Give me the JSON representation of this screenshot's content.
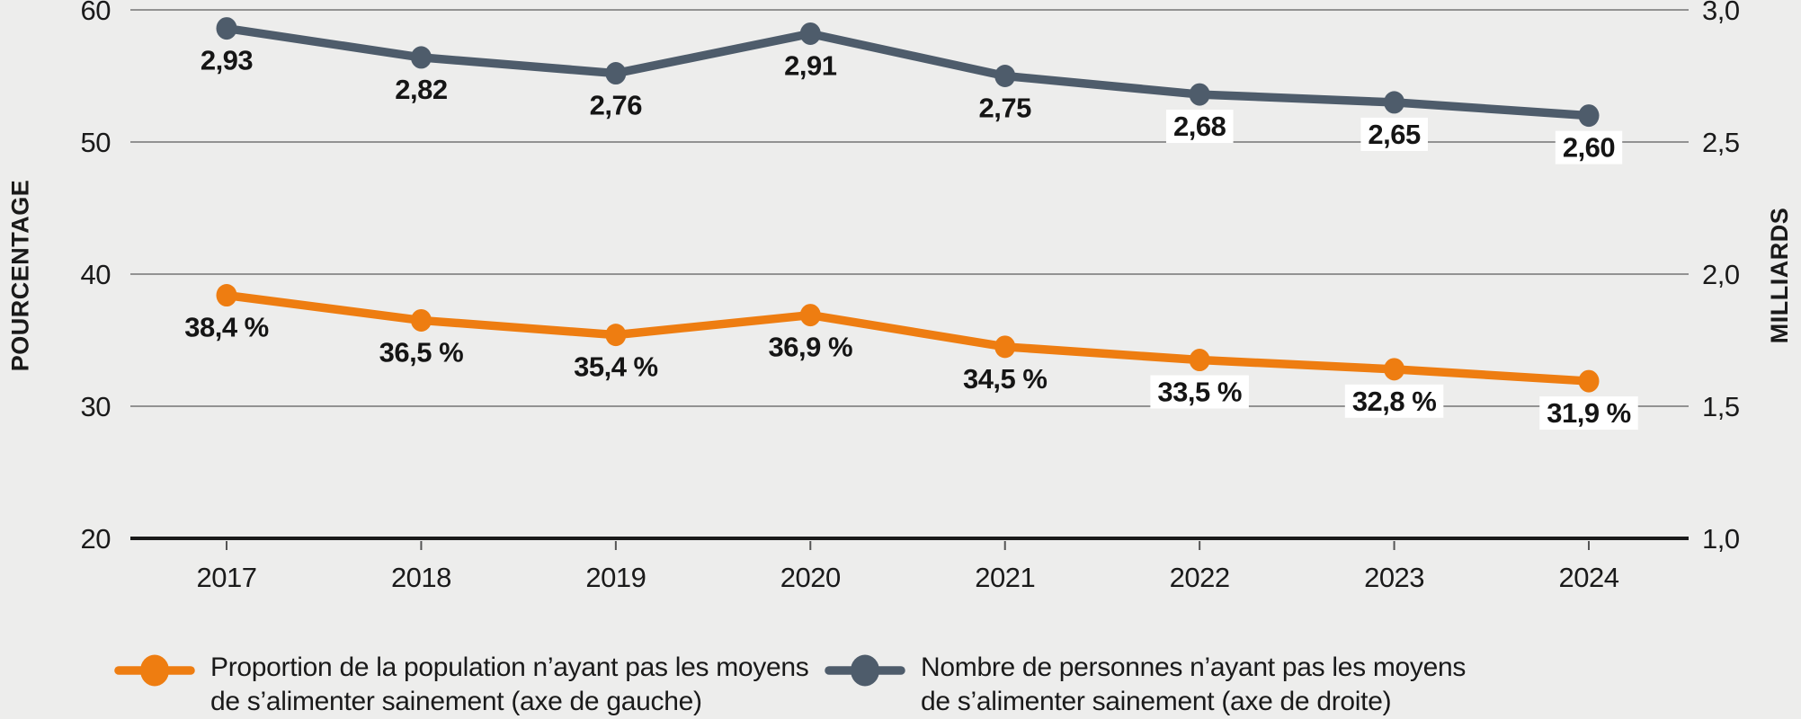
{
  "chart_data": {
    "type": "line",
    "x": [
      "2017",
      "2018",
      "2019",
      "2020",
      "2021",
      "2022",
      "2023",
      "2024"
    ],
    "series": [
      {
        "name": "proportion",
        "legend_lines": [
          "Proportion de la population n’ayant pas les moyens",
          "de s’alimenter sainement (axe de gauche)"
        ],
        "axis": "left",
        "color": "#EE7D11",
        "values": [
          38.4,
          36.5,
          35.4,
          36.9,
          34.5,
          33.5,
          32.8,
          31.9
        ],
        "labels": [
          "38,4 %",
          "36,5 %",
          "35,4 %",
          "36,9 %",
          "34,5 %",
          "33,5 %",
          "32,8 %",
          "31,9 %"
        ]
      },
      {
        "name": "nombre",
        "legend_lines": [
          "Nombre de personnes n’ayant pas les moyens",
          "de s’alimenter sainement (axe de droite)"
        ],
        "axis": "right",
        "color": "#4E5C6B",
        "values": [
          2.93,
          2.82,
          2.76,
          2.91,
          2.75,
          2.68,
          2.65,
          2.6
        ],
        "labels": [
          "2,93",
          "2,82",
          "2,76",
          "2,91",
          "2,75",
          "2,68",
          "2,65",
          "2,60"
        ]
      }
    ],
    "axes": {
      "left": {
        "title": "POURCENTAGE",
        "ticks": [
          "60",
          "50",
          "40",
          "30",
          "20"
        ],
        "tick_values": [
          60,
          50,
          40,
          30,
          20
        ],
        "range": [
          20,
          60
        ]
      },
      "right": {
        "title": "MILLIARDS",
        "ticks": [
          "3,0",
          "2,5",
          "2,0",
          "1,5",
          "1,0"
        ],
        "tick_values": [
          3.0,
          2.5,
          2.0,
          1.5,
          1.0
        ],
        "range": [
          1.0,
          3.0
        ]
      }
    },
    "grid": true,
    "legend_position": "bottom"
  },
  "colors": {
    "background": "#EDEDEC",
    "gridline": "#757575",
    "axis_line": "#1A1A1A",
    "tick_mark": "#555555",
    "label_bg": "#FFFFFF"
  }
}
